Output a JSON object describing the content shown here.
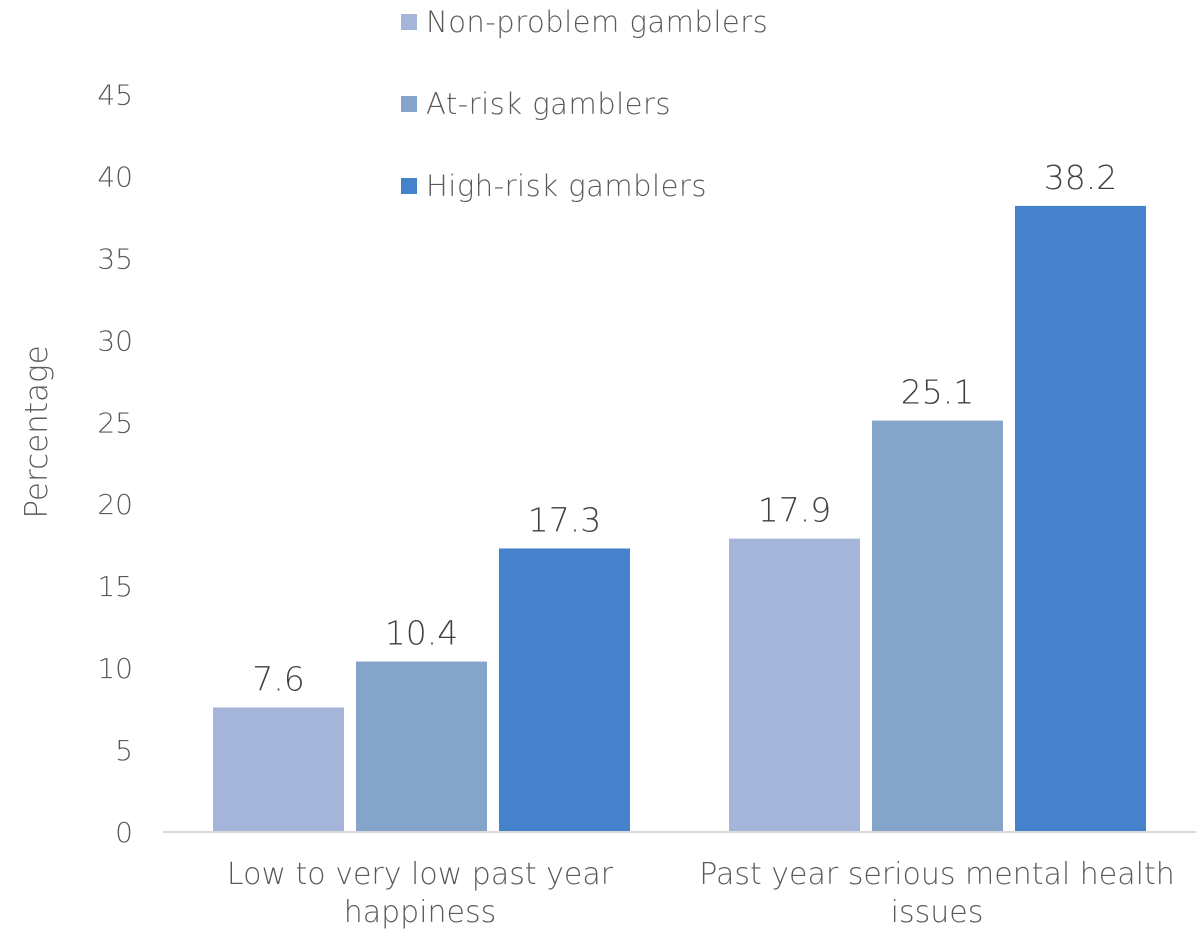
{
  "chart_data": {
    "type": "bar",
    "categories": [
      [
        "Low to very low past year",
        "happiness"
      ],
      [
        "Past year serious mental health",
        "issues"
      ]
    ],
    "series": [
      {
        "name": "Non-problem gamblers",
        "values": [
          7.6,
          17.9
        ],
        "color": "#a4b5d9"
      },
      {
        "name": "At-risk gamblers",
        "values": [
          10.4,
          25.1
        ],
        "color": "#84a4ca"
      },
      {
        "name": "High-risk gamblers",
        "values": [
          17.3,
          38.2
        ],
        "color": "#4682cb"
      }
    ],
    "title": "",
    "xlabel": "",
    "ylabel": "Percentage",
    "ylim": [
      0,
      45
    ],
    "yticks": [
      0,
      5,
      10,
      15,
      20,
      25,
      30,
      35,
      40,
      45
    ],
    "grid": false,
    "legend_position": "top-center",
    "data_labels": true
  }
}
